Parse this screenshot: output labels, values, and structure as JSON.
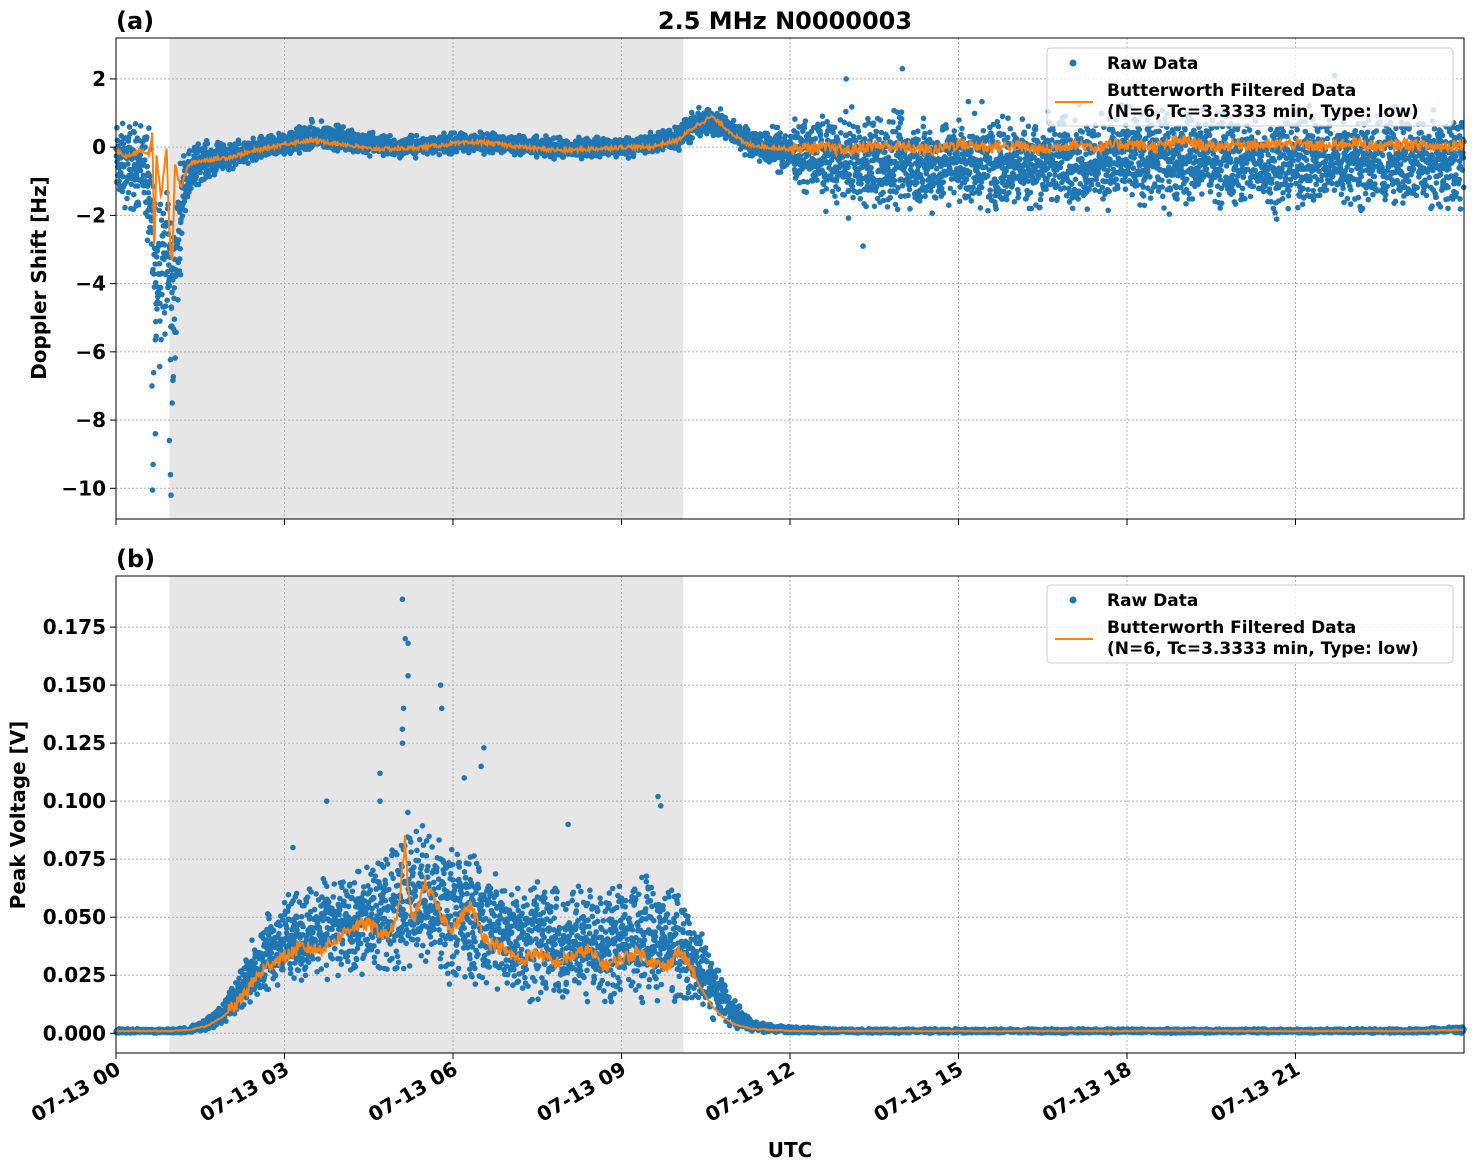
{
  "title": "2.5 MHz N0000003",
  "colors": {
    "raw": "#1f77b4",
    "filtered": "#ff7f0e",
    "shade": "#e6e6e6",
    "grid": "#b0b0b0"
  },
  "chart_data": [
    {
      "type": "scatter",
      "panel_label": "(a)",
      "ylabel": "Doppler Shift [Hz]",
      "xlabel": "",
      "xlim_hours": [
        0,
        24
      ],
      "ylim": [
        -10.9,
        3.2
      ],
      "yticks": [
        2,
        0,
        -2,
        -4,
        -6,
        -8,
        -10
      ],
      "ytick_labels": [
        "2",
        "0",
        "−2",
        "−4",
        "−6",
        "−8",
        "−10"
      ],
      "grid": true,
      "shaded_region_hours": [
        0.95,
        10.1
      ],
      "legend_position": "top-right",
      "legend": {
        "raw_label": "Raw Data",
        "filtered_label_line1": "Butterworth Filtered Data",
        "filtered_label_line2": "(N=6, Tc=3.3333 min, Type: low)"
      },
      "series": [
        {
          "name": "Raw Data",
          "kind": "points",
          "x_hours": [
            0.1,
            0.3,
            0.5,
            0.64,
            0.7,
            0.8,
            0.95,
            1.0,
            1.2,
            1.5,
            2.0,
            2.5,
            3.0,
            3.5,
            4.0,
            4.5,
            5.0,
            5.5,
            6.0,
            6.5,
            7.0,
            7.5,
            8.0,
            8.5,
            9.0,
            9.5,
            10.0,
            10.3,
            10.6,
            11.0,
            11.5,
            12.0,
            12.5,
            13.0,
            13.5,
            14.0,
            14.5,
            15.0,
            15.5,
            16.0,
            16.5,
            17.0,
            17.5,
            18.0,
            18.5,
            19.0,
            19.5,
            20.0,
            20.5,
            21.0,
            21.5,
            22.0,
            22.5,
            23.0,
            23.5,
            24.0
          ],
          "y_mid": [
            -0.5,
            -0.6,
            -0.4,
            -2.5,
            -4.0,
            -3.0,
            -3.5,
            -5.0,
            -1.0,
            -0.4,
            -0.3,
            -0.1,
            0.1,
            0.3,
            0.25,
            0.1,
            0.0,
            0.05,
            0.1,
            0.15,
            0.1,
            0.0,
            -0.05,
            0.0,
            0.0,
            0.1,
            0.3,
            0.6,
            0.8,
            0.4,
            0.0,
            -0.1,
            -0.3,
            -0.4,
            -0.5,
            -0.5,
            -0.45,
            -0.4,
            -0.5,
            -0.4,
            -0.45,
            -0.35,
            -0.4,
            -0.35,
            -0.4,
            -0.3,
            -0.35,
            -0.4,
            -0.45,
            -0.4,
            -0.35,
            -0.4,
            -0.4,
            -0.45,
            -0.4,
            -0.4
          ],
          "y_spread": [
            1.6,
            1.8,
            1.7,
            3.5,
            5.0,
            3.5,
            3.0,
            4.5,
            1.2,
            0.8,
            0.5,
            0.5,
            0.5,
            0.6,
            0.5,
            0.5,
            0.4,
            0.4,
            0.4,
            0.4,
            0.4,
            0.4,
            0.4,
            0.4,
            0.4,
            0.4,
            0.5,
            0.6,
            0.6,
            0.5,
            0.6,
            1.0,
            1.6,
            1.8,
            1.9,
            1.9,
            1.8,
            1.8,
            1.9,
            1.8,
            1.8,
            1.8,
            1.8,
            1.8,
            1.8,
            1.8,
            1.8,
            1.8,
            1.8,
            1.8,
            1.8,
            1.8,
            1.8,
            1.8,
            1.8,
            1.8
          ],
          "extreme_points": [
            [
              0.65,
              -10.05
            ],
            [
              0.98,
              -10.2
            ],
            [
              0.97,
              -9.6
            ],
            [
              0.66,
              -9.3
            ],
            [
              0.7,
              -8.4
            ],
            [
              0.95,
              -8.6
            ],
            [
              0.64,
              -7.0
            ],
            [
              1.0,
              -7.5
            ],
            [
              13.3,
              -2.9
            ],
            [
              14.0,
              2.3
            ],
            [
              21.7,
              2.1
            ],
            [
              13.0,
              2.0
            ]
          ]
        },
        {
          "name": "Butterworth Filtered Data",
          "kind": "line",
          "x_hours": [
            0.0,
            0.2,
            0.4,
            0.6,
            0.65,
            0.68,
            0.72,
            0.8,
            0.9,
            0.95,
            1.0,
            1.05,
            1.15,
            1.3,
            1.5,
            2.0,
            2.5,
            3.0,
            3.5,
            4.0,
            4.5,
            5.0,
            5.5,
            6.0,
            6.5,
            7.0,
            7.5,
            8.0,
            8.5,
            9.0,
            9.5,
            10.0,
            10.3,
            10.6,
            10.9,
            11.2,
            11.6,
            12.0,
            12.5,
            13.0,
            13.5,
            14.0,
            14.5,
            15.0,
            15.5,
            16.0,
            16.5,
            17.0,
            17.5,
            18.0,
            18.5,
            19.0,
            19.5,
            20.0,
            20.5,
            21.0,
            21.5,
            22.0,
            22.5,
            23.0,
            23.5,
            24.0
          ],
          "y": [
            -0.1,
            -0.3,
            -0.1,
            -0.2,
            0.5,
            -3.5,
            -0.2,
            -1.5,
            0.0,
            -2.5,
            -3.5,
            -0.5,
            -1.2,
            -0.5,
            -0.4,
            -0.3,
            -0.1,
            0.1,
            0.2,
            0.1,
            -0.05,
            -0.05,
            0.0,
            0.1,
            0.15,
            0.05,
            -0.05,
            -0.1,
            -0.05,
            0.0,
            0.0,
            0.2,
            0.6,
            0.9,
            0.5,
            0.1,
            0.0,
            -0.05,
            0.0,
            -0.1,
            0.05,
            0.0,
            -0.1,
            0.1,
            0.0,
            0.05,
            -0.1,
            0.1,
            0.0,
            0.1,
            0.0,
            0.2,
            0.0,
            0.1,
            0.05,
            0.1,
            0.0,
            0.15,
            0.0,
            0.1,
            0.0,
            0.1
          ]
        }
      ]
    },
    {
      "type": "scatter",
      "panel_label": "(b)",
      "ylabel": "Peak Voltage [V]",
      "xlabel": "UTC",
      "xlim_hours": [
        0,
        24
      ],
      "ylim": [
        -0.0085,
        0.197
      ],
      "yticks": [
        0.0,
        0.025,
        0.05,
        0.075,
        0.1,
        0.125,
        0.15,
        0.175
      ],
      "ytick_labels": [
        "0.000",
        "0.025",
        "0.050",
        "0.075",
        "0.100",
        "0.125",
        "0.150",
        "0.175"
      ],
      "xtick_hours": [
        0,
        3,
        6,
        9,
        12,
        15,
        18,
        21
      ],
      "xtick_labels": [
        "07-13 00",
        "07-13 03",
        "07-13 06",
        "07-13 09",
        "07-13 12",
        "07-13 15",
        "07-13 18",
        "07-13 21"
      ],
      "grid": true,
      "shaded_region_hours": [
        0.95,
        10.1
      ],
      "legend_position": "top-right",
      "legend": {
        "raw_label": "Raw Data",
        "filtered_label_line1": "Butterworth Filtered Data",
        "filtered_label_line2": "(N=6, Tc=3.3333 min, Type: low)"
      },
      "series": [
        {
          "name": "Raw Data",
          "kind": "points",
          "x_hours": [
            0.0,
            0.5,
            1.0,
            1.3,
            1.6,
            1.9,
            2.2,
            2.5,
            2.8,
            3.1,
            3.5,
            4.0,
            4.5,
            5.0,
            5.2,
            5.5,
            6.0,
            6.5,
            7.0,
            7.5,
            8.0,
            8.5,
            9.0,
            9.5,
            10.0,
            10.3,
            10.6,
            11.0,
            11.3,
            11.6,
            12.0,
            13.0,
            14.0,
            15.0,
            16.0,
            17.0,
            18.0,
            19.0,
            20.0,
            21.0,
            22.0,
            23.0,
            24.0
          ],
          "y_low": [
            0.0,
            0.0,
            0.0,
            0.0,
            0.001,
            0.003,
            0.008,
            0.014,
            0.018,
            0.02,
            0.021,
            0.022,
            0.023,
            0.024,
            0.025,
            0.022,
            0.02,
            0.018,
            0.015,
            0.012,
            0.012,
            0.011,
            0.012,
            0.012,
            0.012,
            0.012,
            0.006,
            0.002,
            0.001,
            0.0,
            0.0,
            0.0,
            0.0,
            0.0,
            0.0,
            0.0,
            0.0,
            0.0,
            0.0,
            0.0,
            0.0,
            0.0,
            0.0
          ],
          "y_high": [
            0.002,
            0.002,
            0.002,
            0.003,
            0.006,
            0.013,
            0.028,
            0.045,
            0.058,
            0.062,
            0.065,
            0.07,
            0.075,
            0.085,
            0.1,
            0.09,
            0.085,
            0.078,
            0.072,
            0.068,
            0.065,
            0.066,
            0.07,
            0.072,
            0.065,
            0.052,
            0.035,
            0.015,
            0.006,
            0.004,
            0.003,
            0.002,
            0.002,
            0.002,
            0.002,
            0.002,
            0.002,
            0.002,
            0.002,
            0.002,
            0.002,
            0.002,
            0.003
          ],
          "extreme_points": [
            [
              5.1,
              0.187
            ],
            [
              5.15,
              0.17
            ],
            [
              5.2,
              0.168
            ],
            [
              5.2,
              0.154
            ],
            [
              5.12,
              0.14
            ],
            [
              5.1,
              0.131
            ],
            [
              5.1,
              0.125
            ],
            [
              5.78,
              0.15
            ],
            [
              5.8,
              0.14
            ],
            [
              6.55,
              0.123
            ],
            [
              6.5,
              0.115
            ],
            [
              4.7,
              0.112
            ],
            [
              4.7,
              0.1
            ],
            [
              3.75,
              0.1
            ],
            [
              3.15,
              0.08
            ],
            [
              9.65,
              0.102
            ],
            [
              9.7,
              0.098
            ],
            [
              8.05,
              0.09
            ],
            [
              6.2,
              0.11
            ]
          ]
        },
        {
          "name": "Butterworth Filtered Data",
          "kind": "line",
          "x_hours": [
            0.0,
            0.5,
            1.0,
            1.3,
            1.6,
            1.9,
            2.2,
            2.5,
            2.8,
            3.0,
            3.3,
            3.6,
            3.9,
            4.2,
            4.5,
            4.8,
            5.0,
            5.1,
            5.15,
            5.2,
            5.3,
            5.5,
            5.8,
            6.0,
            6.3,
            6.6,
            6.9,
            7.2,
            7.5,
            7.8,
            8.1,
            8.4,
            8.7,
            9.0,
            9.3,
            9.6,
            9.8,
            10.0,
            10.2,
            10.4,
            10.6,
            10.8,
            11.0,
            11.3,
            11.6,
            12.0,
            13.0,
            14.0,
            15.0,
            16.0,
            17.0,
            18.0,
            19.0,
            20.0,
            21.0,
            22.0,
            23.0,
            24.0
          ],
          "y": [
            0.001,
            0.001,
            0.001,
            0.0015,
            0.003,
            0.007,
            0.014,
            0.024,
            0.031,
            0.033,
            0.037,
            0.036,
            0.04,
            0.046,
            0.047,
            0.042,
            0.048,
            0.07,
            0.084,
            0.06,
            0.048,
            0.065,
            0.05,
            0.045,
            0.055,
            0.04,
            0.036,
            0.031,
            0.035,
            0.03,
            0.033,
            0.036,
            0.029,
            0.032,
            0.035,
            0.03,
            0.028,
            0.036,
            0.03,
            0.02,
            0.012,
            0.007,
            0.004,
            0.002,
            0.0015,
            0.001,
            0.001,
            0.001,
            0.001,
            0.001,
            0.001,
            0.001,
            0.0012,
            0.001,
            0.001,
            0.001,
            0.001,
            0.0015
          ]
        }
      ]
    }
  ]
}
